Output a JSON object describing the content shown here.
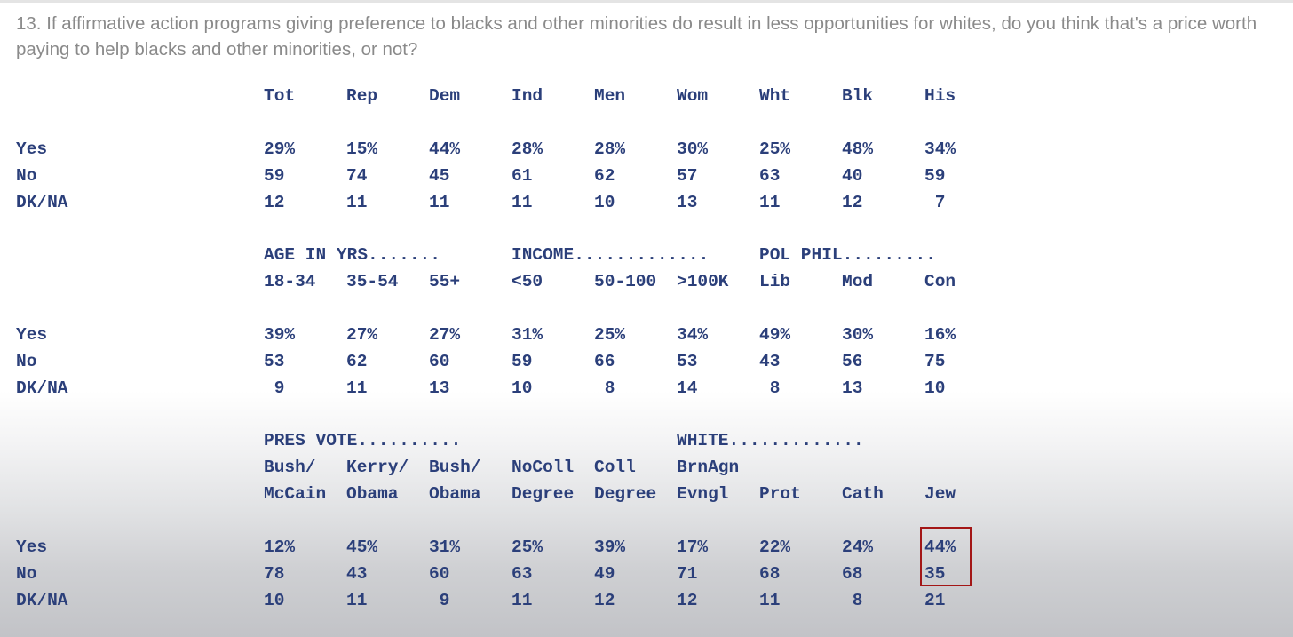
{
  "question": "13. If affirmative action programs giving preference to blacks and other minorities do result in less opportunities for whites, do you think that's a price worth paying to help blacks and other minorities, or not?",
  "colors": {
    "question_text": "#8a8a8a",
    "table_text": "#2b3f7a",
    "highlight_box": "#a31616"
  },
  "table1": {
    "headers": [
      "Tot",
      "Rep",
      "Dem",
      "Ind",
      "Men",
      "Wom",
      "Wht",
      "Blk",
      "His"
    ],
    "rows": [
      {
        "label": "Yes",
        "values": [
          "29%",
          "15%",
          "44%",
          "28%",
          "28%",
          "30%",
          "25%",
          "48%",
          "34%"
        ]
      },
      {
        "label": "No",
        "values": [
          "59",
          "74",
          "45",
          "61",
          "62",
          "57",
          "63",
          "40",
          "59"
        ]
      },
      {
        "label": "DK/NA",
        "values": [
          "12",
          "11",
          "11",
          "11",
          "10",
          "13",
          "11",
          "12",
          " 7"
        ]
      }
    ]
  },
  "table2": {
    "groups": [
      "AGE IN YRS.......",
      "INCOME.............",
      "POL PHIL........."
    ],
    "headers": [
      "18-34",
      "35-54",
      "55+",
      "<50",
      "50-100",
      ">100K",
      "Lib",
      "Mod",
      "Con"
    ],
    "rows": [
      {
        "label": "Yes",
        "values": [
          "39%",
          "27%",
          "27%",
          "31%",
          "25%",
          "34%",
          "49%",
          "30%",
          "16%"
        ]
      },
      {
        "label": "No",
        "values": [
          "53",
          "62",
          "60",
          "59",
          "66",
          "53",
          "43",
          "56",
          "75"
        ]
      },
      {
        "label": "DK/NA",
        "values": [
          " 9",
          "11",
          "13",
          "10",
          " 8",
          "14",
          " 8",
          "13",
          "10"
        ]
      }
    ]
  },
  "table3": {
    "groups": [
      "PRES VOTE..........",
      "WHITE............."
    ],
    "headers_line1": [
      "Bush/",
      "Kerry/",
      "Bush/",
      "NoColl",
      "Coll",
      "BrnAgn",
      "",
      "",
      ""
    ],
    "headers_line2": [
      "McCain",
      "Obama",
      "Obama",
      "Degree",
      "Degree",
      "Evngl",
      "Prot",
      "Cath",
      "Jew"
    ],
    "rows": [
      {
        "label": "Yes",
        "values": [
          "12%",
          "45%",
          "31%",
          "25%",
          "39%",
          "17%",
          "22%",
          "24%",
          "44%"
        ]
      },
      {
        "label": "No",
        "values": [
          "78",
          "43",
          "60",
          "63",
          "49",
          "71",
          "68",
          "68",
          "35"
        ]
      },
      {
        "label": "DK/NA",
        "values": [
          "10",
          "11",
          " 9",
          "11",
          "12",
          "12",
          "11",
          " 8",
          "21"
        ]
      }
    ]
  }
}
